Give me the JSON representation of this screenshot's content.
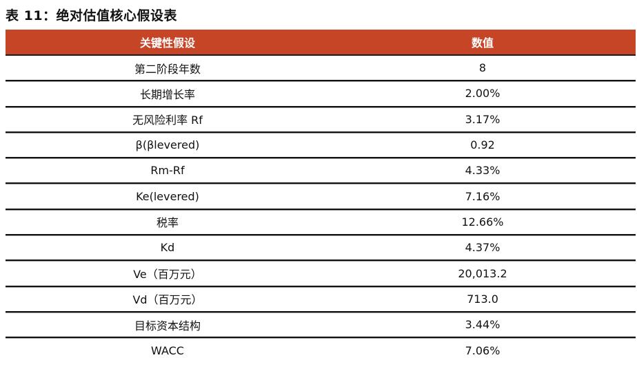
{
  "title": "表 11：绝对估值核心假设表",
  "table": {
    "header_color": "#c54526",
    "columns": [
      "关键性假设",
      "数值"
    ],
    "rows": [
      {
        "label": "第二阶段年数",
        "value": "8"
      },
      {
        "label": "长期增长率",
        "value": "2.00%"
      },
      {
        "label": "无风险利率 Rf",
        "value": "3.17%"
      },
      {
        "label": "β(βlevered)",
        "value": "0.92"
      },
      {
        "label": "Rm-Rf",
        "value": "4.33%"
      },
      {
        "label": "Ke(levered)",
        "value": "7.16%"
      },
      {
        "label": "税率",
        "value": "12.66%"
      },
      {
        "label": "Kd",
        "value": "4.37%"
      },
      {
        "label": "Ve（百万元）",
        "value": "20,013.2"
      },
      {
        "label": "Vd（百万元）",
        "value": "713.0"
      },
      {
        "label": "目标资本结构",
        "value": "3.44%"
      },
      {
        "label": "WACC",
        "value": "7.06%"
      }
    ]
  }
}
